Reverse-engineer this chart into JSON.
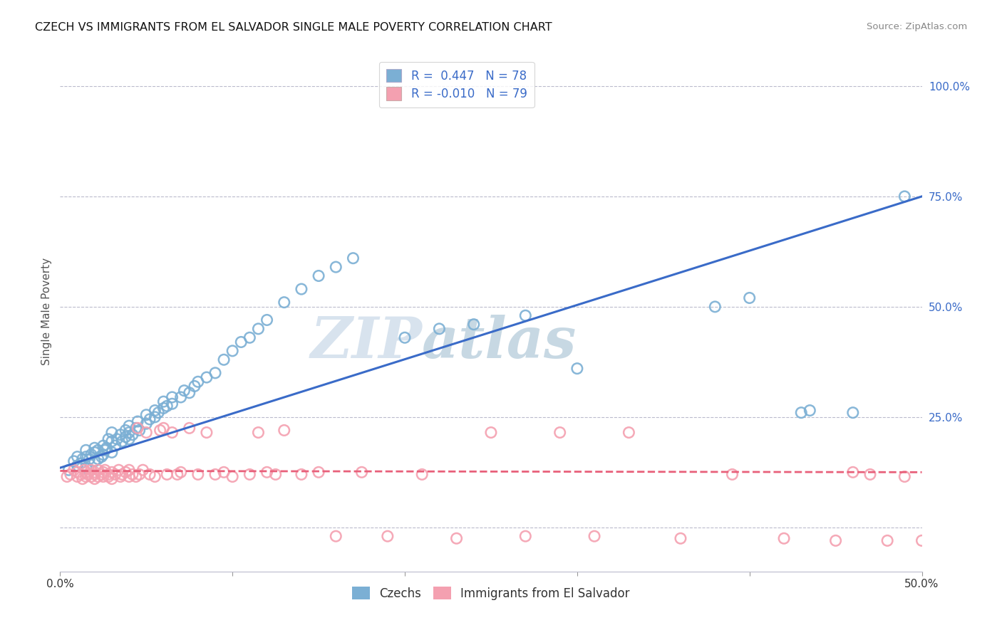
{
  "title": "CZECH VS IMMIGRANTS FROM EL SALVADOR SINGLE MALE POVERTY CORRELATION CHART",
  "source": "Source: ZipAtlas.com",
  "ylabel": "Single Male Poverty",
  "legend_label1": "Czechs",
  "legend_label2": "Immigrants from El Salvador",
  "r1": 0.447,
  "n1": 78,
  "r2": -0.01,
  "n2": 79,
  "blue_color": "#7BAFD4",
  "pink_color": "#F4A0B0",
  "blue_line_color": "#3A6BC8",
  "pink_line_color": "#E8607A",
  "watermark_zip": "ZIP",
  "watermark_atlas": "atlas",
  "background_color": "#FFFFFF",
  "grid_color": "#BBBBCC",
  "xlim": [
    0.0,
    0.5
  ],
  "ylim": [
    -0.1,
    1.08
  ],
  "yticks": [
    0.0,
    0.25,
    0.5,
    0.75,
    1.0
  ],
  "ytick_labels": [
    "",
    "25.0%",
    "50.0%",
    "75.0%",
    "100.0%"
  ],
  "czechs_x": [
    0.005,
    0.008,
    0.01,
    0.01,
    0.012,
    0.013,
    0.015,
    0.015,
    0.015,
    0.017,
    0.018,
    0.02,
    0.02,
    0.02,
    0.022,
    0.022,
    0.024,
    0.025,
    0.025,
    0.026,
    0.027,
    0.028,
    0.03,
    0.03,
    0.03,
    0.032,
    0.033,
    0.035,
    0.036,
    0.038,
    0.038,
    0.04,
    0.04,
    0.04,
    0.042,
    0.044,
    0.045,
    0.046,
    0.05,
    0.05,
    0.052,
    0.055,
    0.055,
    0.057,
    0.06,
    0.06,
    0.062,
    0.065,
    0.065,
    0.07,
    0.072,
    0.075,
    0.078,
    0.08,
    0.085,
    0.09,
    0.095,
    0.1,
    0.105,
    0.11,
    0.115,
    0.12,
    0.13,
    0.14,
    0.15,
    0.16,
    0.17,
    0.2,
    0.22,
    0.24,
    0.27,
    0.3,
    0.38,
    0.4,
    0.43,
    0.435,
    0.46,
    0.49
  ],
  "czechs_y": [
    0.13,
    0.15,
    0.14,
    0.16,
    0.145,
    0.155,
    0.135,
    0.16,
    0.175,
    0.155,
    0.165,
    0.15,
    0.17,
    0.18,
    0.155,
    0.175,
    0.16,
    0.165,
    0.185,
    0.175,
    0.18,
    0.2,
    0.17,
    0.195,
    0.215,
    0.185,
    0.2,
    0.21,
    0.195,
    0.205,
    0.22,
    0.2,
    0.215,
    0.23,
    0.21,
    0.225,
    0.24,
    0.22,
    0.235,
    0.255,
    0.245,
    0.25,
    0.265,
    0.26,
    0.27,
    0.285,
    0.275,
    0.28,
    0.295,
    0.295,
    0.31,
    0.305,
    0.32,
    0.33,
    0.34,
    0.35,
    0.38,
    0.4,
    0.42,
    0.43,
    0.45,
    0.47,
    0.51,
    0.54,
    0.57,
    0.59,
    0.61,
    0.43,
    0.45,
    0.46,
    0.48,
    0.36,
    0.5,
    0.52,
    0.26,
    0.265,
    0.26,
    0.75
  ],
  "salvador_x": [
    0.004,
    0.006,
    0.008,
    0.01,
    0.01,
    0.012,
    0.013,
    0.014,
    0.015,
    0.015,
    0.016,
    0.018,
    0.018,
    0.02,
    0.02,
    0.02,
    0.022,
    0.022,
    0.024,
    0.025,
    0.025,
    0.026,
    0.028,
    0.028,
    0.03,
    0.03,
    0.032,
    0.034,
    0.035,
    0.036,
    0.038,
    0.04,
    0.04,
    0.042,
    0.044,
    0.045,
    0.046,
    0.048,
    0.05,
    0.052,
    0.055,
    0.058,
    0.06,
    0.062,
    0.065,
    0.068,
    0.07,
    0.075,
    0.08,
    0.085,
    0.09,
    0.095,
    0.1,
    0.11,
    0.115,
    0.12,
    0.125,
    0.13,
    0.14,
    0.15,
    0.16,
    0.175,
    0.19,
    0.21,
    0.23,
    0.25,
    0.27,
    0.29,
    0.31,
    0.33,
    0.36,
    0.39,
    0.42,
    0.45,
    0.46,
    0.47,
    0.48,
    0.49,
    0.5
  ],
  "salvador_y": [
    0.115,
    0.12,
    0.13,
    0.125,
    0.115,
    0.12,
    0.11,
    0.13,
    0.125,
    0.115,
    0.12,
    0.115,
    0.13,
    0.12,
    0.11,
    0.125,
    0.115,
    0.13,
    0.12,
    0.115,
    0.125,
    0.13,
    0.12,
    0.115,
    0.125,
    0.11,
    0.12,
    0.13,
    0.115,
    0.12,
    0.125,
    0.115,
    0.13,
    0.12,
    0.115,
    0.225,
    0.12,
    0.13,
    0.215,
    0.12,
    0.115,
    0.22,
    0.225,
    0.12,
    0.215,
    0.12,
    0.125,
    0.225,
    0.12,
    0.215,
    0.12,
    0.125,
    0.115,
    0.12,
    0.215,
    0.125,
    0.12,
    0.22,
    0.12,
    0.125,
    -0.02,
    0.125,
    -0.02,
    0.12,
    -0.025,
    0.215,
    -0.02,
    0.215,
    -0.02,
    0.215,
    -0.025,
    0.12,
    -0.025,
    -0.03,
    0.125,
    0.12,
    -0.03,
    0.115,
    -0.03
  ]
}
